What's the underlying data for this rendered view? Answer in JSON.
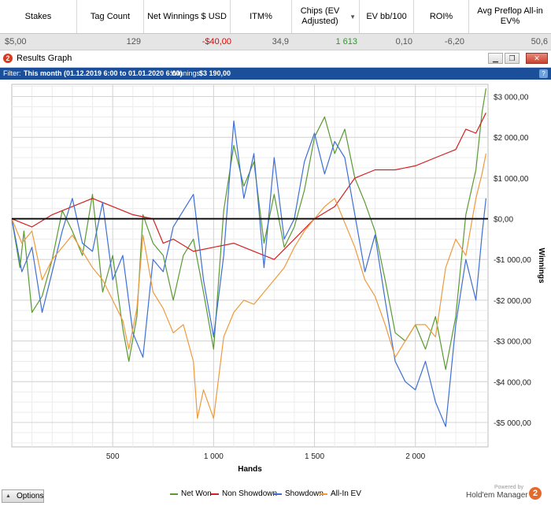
{
  "stats_table": {
    "columns": [
      "Stakes",
      "Tag Count",
      "Net Winnings $ USD",
      "ITM%",
      "Chips (EV Adjusted)",
      "EV bb/100",
      "ROI%",
      "Avg Preflop All-in EV%"
    ],
    "sort_icon": "sort-descending-icon",
    "row": [
      "$5,00",
      "129",
      "-$40,00",
      "34,9",
      "1 613",
      "0,10",
      "-6,20",
      "50,6"
    ],
    "negative_color": "#e00000",
    "positive_color": "#2a9a2a"
  },
  "window": {
    "title": "Results Graph",
    "logo_glyph": "2",
    "logo_icon": "holdem-manager-logo-icon",
    "controls": [
      "minimize-icon",
      "restore-icon",
      "close-icon"
    ]
  },
  "filter_bar": {
    "prefix": "Filter:",
    "filter_text": "This month (01.12.2019 6:00 to 01.01.2020 6:00)",
    "winnings_label": "Winnings:",
    "winnings_value": "$3 190,00",
    "help_glyph": "?",
    "help_icon": "help-icon"
  },
  "chart_data": {
    "type": "line",
    "xlabel": "Hands",
    "ylabel": "Winnings",
    "xlim": [
      0,
      2360
    ],
    "ylim": [
      -5600,
      3300
    ],
    "x_ticks": [
      500,
      1000,
      1500,
      2000
    ],
    "x_tick_labels": [
      "500",
      "1 000",
      "1 500",
      "2 000"
    ],
    "y_ticks": [
      3000,
      2000,
      1000,
      0,
      -1000,
      -2000,
      -3000,
      -4000,
      -5000
    ],
    "y_tick_labels": [
      "$3 000,00",
      "$2 000,00",
      "$1 000,00",
      "$0,00",
      "-$1 000,00",
      "-$2 000,00",
      "-$3 000,00",
      "-$4 000,00",
      "-$5 000,00"
    ],
    "grid": true,
    "legend_position": "bottom",
    "series": [
      {
        "name": "Net Won",
        "color": "#5a9a32",
        "x": [
          0,
          40,
          60,
          100,
          150,
          200,
          250,
          300,
          350,
          400,
          450,
          500,
          550,
          580,
          620,
          650,
          700,
          750,
          800,
          850,
          900,
          950,
          1000,
          1050,
          1100,
          1150,
          1200,
          1250,
          1300,
          1350,
          1400,
          1450,
          1500,
          1550,
          1600,
          1650,
          1700,
          1750,
          1800,
          1850,
          1900,
          1950,
          2000,
          2050,
          2100,
          2150,
          2200,
          2250,
          2300,
          2330,
          2350
        ],
        "y": [
          0,
          -1200,
          -300,
          -2300,
          -1900,
          -1000,
          200,
          -300,
          -900,
          600,
          -1800,
          -900,
          -2700,
          -3500,
          -2400,
          100,
          -600,
          -900,
          -2000,
          -900,
          -500,
          -1800,
          -3200,
          200,
          1800,
          800,
          1400,
          -600,
          600,
          -700,
          -200,
          700,
          2000,
          2500,
          1600,
          2200,
          1000,
          400,
          -300,
          -1500,
          -2800,
          -3000,
          -2600,
          -3200,
          -2400,
          -3700,
          -2400,
          100,
          1200,
          2600,
          3200
        ]
      },
      {
        "name": "Non Showdown",
        "color": "#d42020",
        "x": [
          0,
          100,
          200,
          300,
          400,
          500,
          600,
          700,
          750,
          800,
          900,
          1000,
          1100,
          1200,
          1300,
          1400,
          1500,
          1600,
          1700,
          1800,
          1900,
          2000,
          2100,
          2200,
          2250,
          2300,
          2350
        ],
        "y": [
          0,
          -200,
          100,
          300,
          500,
          300,
          100,
          0,
          -600,
          -500,
          -800,
          -700,
          -600,
          -800,
          -1000,
          -500,
          0,
          300,
          1000,
          1200,
          1200,
          1300,
          1500,
          1700,
          2200,
          2100,
          2600
        ]
      },
      {
        "name": "Showdown",
        "color": "#3d6fd6",
        "x": [
          0,
          50,
          100,
          150,
          200,
          250,
          300,
          350,
          400,
          450,
          500,
          550,
          600,
          650,
          700,
          750,
          800,
          850,
          900,
          950,
          1000,
          1050,
          1100,
          1150,
          1200,
          1250,
          1300,
          1350,
          1400,
          1450,
          1500,
          1550,
          1600,
          1650,
          1700,
          1750,
          1800,
          1850,
          1900,
          1950,
          2000,
          2050,
          2100,
          2150,
          2200,
          2250,
          2300,
          2330,
          2350
        ],
        "y": [
          0,
          -1300,
          -700,
          -2300,
          -1300,
          -300,
          500,
          -600,
          -800,
          400,
          -1500,
          -900,
          -2800,
          -3400,
          -1000,
          -1300,
          -200,
          200,
          600,
          -1500,
          -2900,
          -900,
          2400,
          500,
          1600,
          -1200,
          1500,
          -500,
          0,
          1400,
          2100,
          1100,
          1900,
          1500,
          100,
          -1300,
          -400,
          -2000,
          -3500,
          -4000,
          -4200,
          -3500,
          -4500,
          -5100,
          -2600,
          -1000,
          -2000,
          -400,
          500
        ]
      },
      {
        "name": "All-In EV",
        "color": "#ef9a3c",
        "x": [
          0,
          50,
          100,
          150,
          200,
          250,
          300,
          350,
          400,
          450,
          500,
          550,
          580,
          620,
          650,
          700,
          750,
          800,
          850,
          900,
          920,
          950,
          1000,
          1050,
          1100,
          1150,
          1200,
          1250,
          1300,
          1350,
          1400,
          1450,
          1500,
          1550,
          1600,
          1650,
          1700,
          1750,
          1800,
          1850,
          1900,
          1950,
          2000,
          2050,
          2100,
          2150,
          2200,
          2250,
          2300,
          2330,
          2350
        ],
        "y": [
          0,
          -600,
          -300,
          -1500,
          -1000,
          -700,
          -400,
          -800,
          -1200,
          -1500,
          -2000,
          -2500,
          -3200,
          -2200,
          -400,
          -1800,
          -2200,
          -2800,
          -2600,
          -3500,
          -4900,
          -4200,
          -4900,
          -2900,
          -2300,
          -2000,
          -2100,
          -1800,
          -1500,
          -1200,
          -700,
          -300,
          0,
          300,
          500,
          -100,
          -700,
          -1500,
          -1900,
          -2600,
          -3400,
          -3000,
          -2600,
          -2600,
          -2900,
          -1200,
          -500,
          -900,
          500,
          1100,
          1600
        ]
      }
    ]
  },
  "bottom_bar": {
    "options_label": "Options",
    "options_icon": "triangle-up-icon",
    "powered_by": "Powered by",
    "brand_text": "Hold'em Manager",
    "brand_logo_icon": "holdem-manager-logo-icon",
    "brand_glyph": "2"
  }
}
